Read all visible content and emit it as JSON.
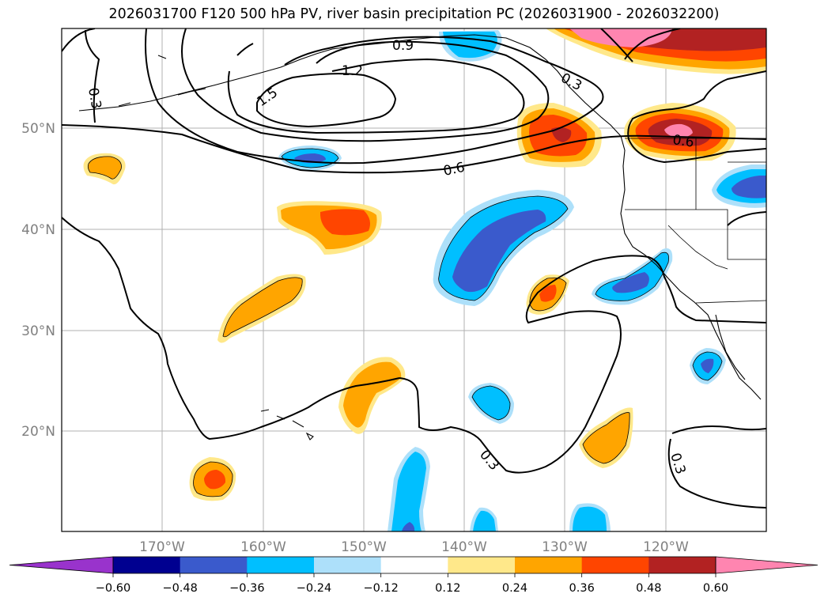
{
  "title": "2026031700 F120 500 hPa PV, river basin precipitation PC (2026031900 - 2026032200)",
  "map": {
    "lat_labels": [
      "50°N",
      "40°N",
      "30°N",
      "20°N"
    ],
    "lon_labels": [
      "170°W",
      "160°W",
      "150°W",
      "140°W",
      "130°W",
      "120°W"
    ],
    "contour_labels": [
      "0.3",
      "0.3",
      "0.3",
      "0.3",
      "0.6",
      "0.6",
      "0.9",
      "1.2",
      "1.5"
    ]
  },
  "colorbar": {
    "tick_labels": [
      "−0.60",
      "−0.48",
      "−0.36",
      "−0.24",
      "−0.12",
      "0.12",
      "0.24",
      "0.36",
      "0.48",
      "0.60"
    ],
    "colors": [
      "#9933cc",
      "#000090",
      "#3a5acc",
      "#00bfff",
      "#ade0fa",
      "#ffffff",
      "#ffe88a",
      "#ffa500",
      "#ff4500",
      "#b22222",
      "#ff85b0"
    ]
  }
}
